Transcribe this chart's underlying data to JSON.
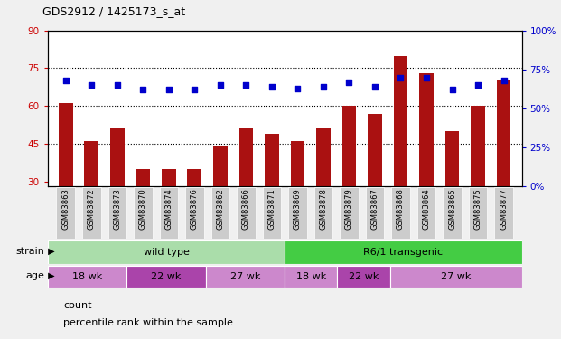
{
  "title": "GDS2912 / 1425173_s_at",
  "samples": [
    "GSM83863",
    "GSM83872",
    "GSM83873",
    "GSM83870",
    "GSM83874",
    "GSM83876",
    "GSM83862",
    "GSM83866",
    "GSM83871",
    "GSM83869",
    "GSM83878",
    "GSM83879",
    "GSM83867",
    "GSM83868",
    "GSM83864",
    "GSM83865",
    "GSM83875",
    "GSM83877"
  ],
  "counts": [
    61,
    46,
    51,
    35,
    35,
    35,
    44,
    51,
    49,
    46,
    51,
    60,
    57,
    80,
    73,
    50,
    60,
    70
  ],
  "percentiles": [
    68,
    65,
    65,
    62,
    62,
    62,
    65,
    65,
    64,
    63,
    64,
    67,
    64,
    70,
    70,
    62,
    65,
    68
  ],
  "ylim_left": [
    28,
    90
  ],
  "ylim_right": [
    0,
    100
  ],
  "yticks_left": [
    30,
    45,
    60,
    75,
    90
  ],
  "yticks_right": [
    0,
    25,
    50,
    75,
    100
  ],
  "ytick_labels_left": [
    "30",
    "45",
    "60",
    "75",
    "90"
  ],
  "ytick_labels_right": [
    "0%",
    "25%",
    "50%",
    "75%",
    "100%"
  ],
  "bar_color": "#aa1111",
  "dot_color": "#0000cc",
  "strain_groups": [
    {
      "label": "wild type",
      "start": 0,
      "end": 9,
      "color": "#aaddaa"
    },
    {
      "label": "R6/1 transgenic",
      "start": 9,
      "end": 18,
      "color": "#44cc44"
    }
  ],
  "age_groups": [
    {
      "label": "18 wk",
      "start": 0,
      "end": 3,
      "color": "#cc88cc"
    },
    {
      "label": "22 wk",
      "start": 3,
      "end": 6,
      "color": "#aa44aa"
    },
    {
      "label": "27 wk",
      "start": 6,
      "end": 9,
      "color": "#cc88cc"
    },
    {
      "label": "18 wk",
      "start": 9,
      "end": 11,
      "color": "#cc88cc"
    },
    {
      "label": "22 wk",
      "start": 11,
      "end": 13,
      "color": "#aa44aa"
    },
    {
      "label": "27 wk",
      "start": 13,
      "end": 18,
      "color": "#cc88cc"
    }
  ],
  "legend_count_label": "count",
  "legend_pct_label": "percentile rank within the sample",
  "xlabel_strain": "strain",
  "xlabel_age": "age",
  "tick_bg_color": "#cccccc",
  "fig_bg_color": "#f0f0f0"
}
